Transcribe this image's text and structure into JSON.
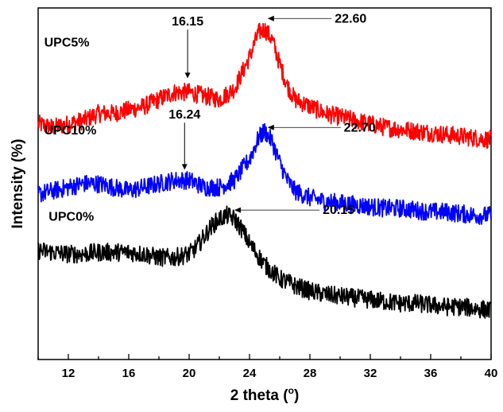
{
  "chart_data": {
    "type": "line",
    "title": "",
    "xlabel": "2 theta (",
    "xlabel_sup": "o",
    "xlabel_close": ")",
    "ylabel": "Intensity (%)",
    "xlim": [
      10,
      40
    ],
    "xticks": [
      12,
      16,
      20,
      24,
      28,
      32,
      36,
      40
    ],
    "xtick_labels": [
      "12",
      "16",
      "20",
      "24",
      "28",
      "32",
      "36",
      "40"
    ],
    "grid": false,
    "legend": "none",
    "y_units": "arbitrary offset intensity",
    "ylim": [
      0,
      100
    ],
    "series": [
      {
        "name": "UPC5%",
        "color": "#ff0000",
        "points": [
          [
            10,
            67
          ],
          [
            11,
            66
          ],
          [
            12,
            67
          ],
          [
            13,
            68
          ],
          [
            14,
            70
          ],
          [
            15,
            70
          ],
          [
            16,
            71
          ],
          [
            17,
            72
          ],
          [
            18,
            74
          ],
          [
            19,
            76
          ],
          [
            20,
            76
          ],
          [
            21,
            75
          ],
          [
            22,
            74
          ],
          [
            23,
            77
          ],
          [
            24,
            86
          ],
          [
            24.6,
            93
          ],
          [
            25,
            94
          ],
          [
            25.5,
            91
          ],
          [
            26,
            84
          ],
          [
            26.5,
            78
          ],
          [
            27,
            74
          ],
          [
            28,
            72
          ],
          [
            29,
            70
          ],
          [
            30,
            69
          ],
          [
            31,
            68
          ],
          [
            32,
            67
          ],
          [
            33,
            66
          ],
          [
            34,
            65.5
          ],
          [
            35,
            65
          ],
          [
            36,
            64.5
          ],
          [
            37,
            64
          ],
          [
            38,
            63.5
          ],
          [
            39,
            63
          ],
          [
            40,
            62.5
          ]
        ]
      },
      {
        "name": "UPC10%",
        "color": "#0000ff",
        "points": [
          [
            10,
            47
          ],
          [
            11,
            48
          ],
          [
            12,
            49
          ],
          [
            13,
            50
          ],
          [
            14,
            50
          ],
          [
            15,
            49
          ],
          [
            16,
            48
          ],
          [
            17,
            49
          ],
          [
            18,
            50
          ],
          [
            19,
            51
          ],
          [
            20,
            51
          ],
          [
            21,
            49
          ],
          [
            22,
            49
          ],
          [
            23,
            51
          ],
          [
            24,
            57
          ],
          [
            24.6,
            63
          ],
          [
            25,
            65
          ],
          [
            25.5,
            62
          ],
          [
            26,
            56
          ],
          [
            26.5,
            51
          ],
          [
            27,
            48
          ],
          [
            28,
            46
          ],
          [
            29,
            45
          ],
          [
            30,
            44.5
          ],
          [
            31,
            44
          ],
          [
            32,
            43.5
          ],
          [
            33,
            43
          ],
          [
            34,
            43
          ],
          [
            35,
            42.5
          ],
          [
            36,
            42
          ],
          [
            37,
            42
          ],
          [
            38,
            41.5
          ],
          [
            39,
            41
          ],
          [
            40,
            41
          ]
        ]
      },
      {
        "name": "UPC0%",
        "color": "#000000",
        "points": [
          [
            10,
            31
          ],
          [
            11,
            30.5
          ],
          [
            12,
            30
          ],
          [
            13,
            30
          ],
          [
            14,
            30.5
          ],
          [
            15,
            30.5
          ],
          [
            16,
            30.5
          ],
          [
            17,
            30
          ],
          [
            18,
            29
          ],
          [
            19,
            29
          ],
          [
            20,
            30
          ],
          [
            20.5,
            32
          ],
          [
            21,
            35
          ],
          [
            21.5,
            38
          ],
          [
            22,
            40
          ],
          [
            22.5,
            41
          ],
          [
            23,
            40
          ],
          [
            23.5,
            37
          ],
          [
            24,
            33
          ],
          [
            25,
            27
          ],
          [
            26,
            23
          ],
          [
            27,
            21
          ],
          [
            28,
            19.5
          ],
          [
            29,
            18.5
          ],
          [
            30,
            18
          ],
          [
            31,
            17.5
          ],
          [
            32,
            17
          ],
          [
            33,
            16.5
          ],
          [
            34,
            16
          ],
          [
            35,
            16
          ],
          [
            36,
            15.5
          ],
          [
            37,
            15
          ],
          [
            38,
            15
          ],
          [
            39,
            14.5
          ],
          [
            40,
            14
          ]
        ]
      }
    ],
    "series_labels": [
      {
        "text": "UPC5%",
        "x": 10.4,
        "y": 89
      },
      {
        "text": "UPC10%",
        "x": 10.4,
        "y": 64
      },
      {
        "text": "UPC0%",
        "x": 10.7,
        "y": 39.5
      }
    ],
    "annotations": [
      {
        "text": "16.15",
        "kind": "arrow",
        "label_x": 19.9,
        "label_y": 95,
        "tip_x": 19.9,
        "tip_y": 80
      },
      {
        "text": "22.60",
        "kind": "leader",
        "label_x": 30.7,
        "label_y": 97,
        "tip_x": 25.2,
        "tip_y": 97
      },
      {
        "text": "16.24",
        "kind": "arrow",
        "label_x": 19.7,
        "label_y": 68.5,
        "tip_x": 19.7,
        "tip_y": 54
      },
      {
        "text": "22.70",
        "kind": "leader",
        "label_x": 31.3,
        "label_y": 66,
        "tip_x": 25.2,
        "tip_y": 66
      },
      {
        "text": "20.15",
        "kind": "leader",
        "label_x": 29.9,
        "label_y": 42.5,
        "tip_x": 23.0,
        "tip_y": 42.5
      }
    ]
  }
}
